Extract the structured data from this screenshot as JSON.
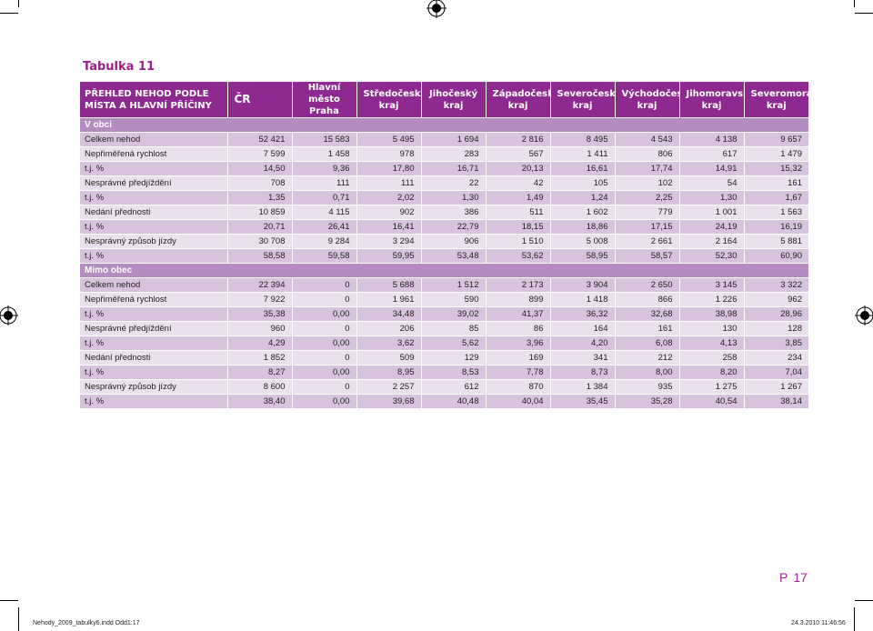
{
  "title": "Tabulka 11",
  "header": {
    "first": [
      "PŘEHLED NEHOD PODLE",
      "MÍSTA A HLAVNÍ PŘÍČINY"
    ],
    "cr": "ČR",
    "regions": [
      [
        "Hlavní město",
        "Praha"
      ],
      [
        "Středočeský",
        "kraj"
      ],
      [
        "Jihočeský",
        "kraj"
      ],
      [
        "Západočeský",
        "kraj"
      ],
      [
        "Severočeský",
        "kraj"
      ],
      [
        "Východočeský",
        "kraj"
      ],
      [
        "Jihomoravský",
        "kraj"
      ],
      [
        "Severomoravský",
        "kraj"
      ]
    ]
  },
  "sections": [
    {
      "name": "V obci",
      "rows": [
        {
          "label": "Celkem nehod",
          "values": [
            "52 421",
            "15 583",
            "5 495",
            "1 694",
            "2 816",
            "8 495",
            "4 543",
            "4 138",
            "9 657"
          ]
        },
        {
          "label": "Nepřiměřená rychlost",
          "values": [
            "7 599",
            "1 458",
            "978",
            "283",
            "567",
            "1 411",
            "806",
            "617",
            "1 479"
          ]
        },
        {
          "label": "t.j. %",
          "values": [
            "14,50",
            "9,36",
            "17,80",
            "16,71",
            "20,13",
            "16,61",
            "17,74",
            "14,91",
            "15,32"
          ]
        },
        {
          "label": "Nesprávné předjíždění",
          "values": [
            "708",
            "111",
            "111",
            "22",
            "42",
            "105",
            "102",
            "54",
            "161"
          ]
        },
        {
          "label": "t.j. %",
          "values": [
            "1,35",
            "0,71",
            "2,02",
            "1,30",
            "1,49",
            "1,24",
            "2,25",
            "1,30",
            "1,67"
          ]
        },
        {
          "label": "Nedání přednosti",
          "values": [
            "10 859",
            "4 115",
            "902",
            "386",
            "511",
            "1 602",
            "779",
            "1 001",
            "1 563"
          ]
        },
        {
          "label": "t.j. %",
          "values": [
            "20,71",
            "26,41",
            "16,41",
            "22,79",
            "18,15",
            "18,86",
            "17,15",
            "24,19",
            "16,19"
          ]
        },
        {
          "label": "Nesprávný způsob jízdy",
          "values": [
            "30 708",
            "9 284",
            "3 294",
            "906",
            "1 510",
            "5 008",
            "2 661",
            "2 164",
            "5 881"
          ]
        },
        {
          "label": "t.j. %",
          "values": [
            "58,58",
            "59,58",
            "59,95",
            "53,48",
            "53,62",
            "58,95",
            "58,57",
            "52,30",
            "60,90"
          ]
        }
      ]
    },
    {
      "name": "Mimo obec",
      "rows": [
        {
          "label": "Celkem nehod",
          "values": [
            "22 394",
            "0",
            "5 688",
            "1 512",
            "2 173",
            "3 904",
            "2 650",
            "3 145",
            "3 322"
          ]
        },
        {
          "label": "Nepřiměřená rychlost",
          "values": [
            "7 922",
            "0",
            "1 961",
            "590",
            "899",
            "1 418",
            "866",
            "1 226",
            "962"
          ]
        },
        {
          "label": "t.j. %",
          "values": [
            "35,38",
            "0,00",
            "34,48",
            "39,02",
            "41,37",
            "36,32",
            "32,68",
            "38,98",
            "28,96"
          ]
        },
        {
          "label": "Nesprávné předjíždění",
          "values": [
            "960",
            "0",
            "206",
            "85",
            "86",
            "164",
            "161",
            "130",
            "128"
          ]
        },
        {
          "label": "t.j. %",
          "values": [
            "4,29",
            "0,00",
            "3,62",
            "5,62",
            "3,96",
            "4,20",
            "6,08",
            "4,13",
            "3,85"
          ]
        },
        {
          "label": "Nedání přednosti",
          "values": [
            "1 852",
            "0",
            "509",
            "129",
            "169",
            "341",
            "212",
            "258",
            "234"
          ]
        },
        {
          "label": "t.j. %",
          "values": [
            "8,27",
            "0,00",
            "8,95",
            "8,53",
            "7,78",
            "8,73",
            "8,00",
            "8,20",
            "7,04"
          ]
        },
        {
          "label": "Nesprávný způsob jízdy",
          "values": [
            "8 600",
            "0",
            "2 257",
            "612",
            "870",
            "1 384",
            "935",
            "1 275",
            "1 267"
          ]
        },
        {
          "label": "t.j. %",
          "values": [
            "38,40",
            "0,00",
            "39,68",
            "40,48",
            "40,04",
            "35,45",
            "35,28",
            "40,54",
            "38,14"
          ]
        }
      ]
    }
  ],
  "page": {
    "letter": "P",
    "number": "17"
  },
  "footer": {
    "file": "Nehody_2009_tabulky6.indd Odd1:17",
    "datetime": "24.3.2010 11:46:56"
  },
  "colors": {
    "accent": "#9e1f8e",
    "header_bg": "#8e2a8f",
    "band": "#b58cc0",
    "row_dark": "#d8c3de",
    "row_light": "#ebe0ee"
  }
}
